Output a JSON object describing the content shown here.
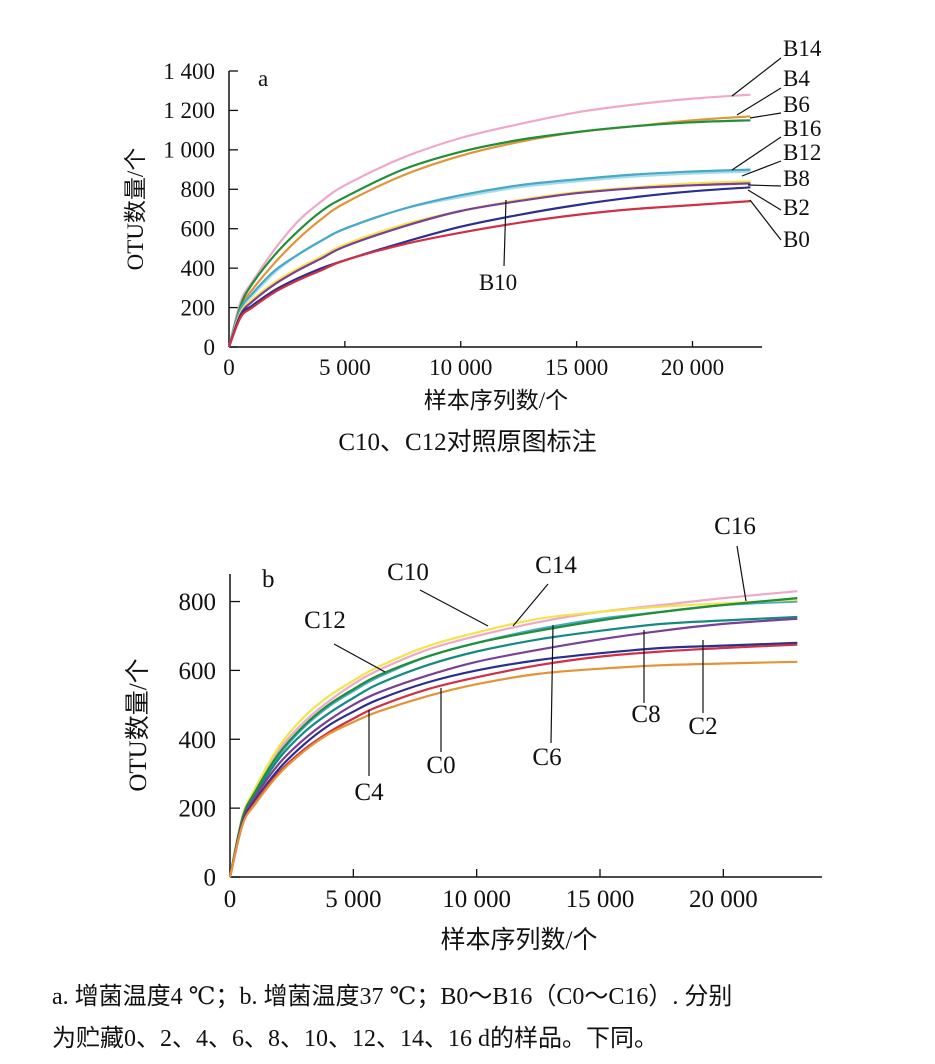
{
  "chart_data": [
    {
      "type": "line",
      "panel_label": "a",
      "xlabel": "样本序列数/个",
      "ylabel": "OTU数量/个",
      "xlim": [
        0,
        23000
      ],
      "ylim": [
        0,
        1400
      ],
      "x_ticks": [
        0,
        5000,
        10000,
        15000,
        20000
      ],
      "x_tick_labels": [
        "0",
        "5 000",
        "10 000",
        "15 000",
        "20 000"
      ],
      "y_ticks": [
        0,
        200,
        400,
        600,
        800,
        1000,
        1200,
        1400
      ],
      "y_tick_labels": [
        "0",
        "200",
        "400",
        "600",
        "800",
        "1 000",
        "1 200",
        "1 400"
      ],
      "grid": false,
      "x": [
        0,
        500,
        1000,
        2000,
        3000,
        4000,
        5000,
        7500,
        10000,
        12500,
        15000,
        17500,
        20000,
        22500
      ],
      "series": [
        {
          "name": "B14",
          "color": "#f0a8c8",
          "values": [
            0,
            230,
            330,
            500,
            640,
            740,
            820,
            960,
            1060,
            1130,
            1190,
            1230,
            1260,
            1280
          ]
        },
        {
          "name": "B4",
          "color": "#e29437",
          "values": [
            0,
            200,
            290,
            430,
            550,
            650,
            730,
            870,
            970,
            1040,
            1090,
            1120,
            1150,
            1170
          ]
        },
        {
          "name": "B6",
          "color": "#1f8f3a",
          "values": [
            0,
            210,
            320,
            470,
            590,
            690,
            760,
            900,
            990,
            1050,
            1090,
            1120,
            1140,
            1150
          ]
        },
        {
          "name": "B16",
          "color": "#a8dce8",
          "values": [
            0,
            190,
            260,
            380,
            470,
            540,
            600,
            700,
            760,
            810,
            840,
            865,
            880,
            890
          ]
        },
        {
          "name": "B12",
          "color": "#47a9c9",
          "values": [
            0,
            190,
            270,
            390,
            470,
            540,
            600,
            700,
            770,
            820,
            850,
            875,
            890,
            900
          ]
        },
        {
          "name": "B8",
          "color": "#f2e44a",
          "values": [
            0,
            175,
            240,
            330,
            400,
            460,
            520,
            620,
            690,
            745,
            785,
            810,
            830,
            840
          ]
        },
        {
          "name": "B10",
          "color": "#7a3f96",
          "values": [
            0,
            165,
            230,
            320,
            390,
            450,
            510,
            610,
            690,
            740,
            780,
            805,
            820,
            830
          ]
        },
        {
          "name": "B2",
          "color": "#2a2f8f",
          "values": [
            0,
            160,
            210,
            290,
            350,
            400,
            440,
            530,
            610,
            670,
            720,
            760,
            790,
            810
          ]
        },
        {
          "name": "B0",
          "color": "#d03045",
          "values": [
            0,
            150,
            200,
            280,
            340,
            390,
            440,
            520,
            580,
            630,
            670,
            700,
            720,
            740
          ]
        }
      ],
      "labels": [
        "B14",
        "B4",
        "B6",
        "B16",
        "B12",
        "B8",
        "B2",
        "B0",
        "B10"
      ]
    },
    {
      "type": "line",
      "panel_label": "b",
      "xlabel": "样本序列数/个",
      "ylabel": "OTU数量/个",
      "xlim": [
        0,
        24000
      ],
      "ylim": [
        0,
        880
      ],
      "x_ticks": [
        0,
        5000,
        10000,
        15000,
        20000
      ],
      "x_tick_labels": [
        "0",
        "5 000",
        "10 000",
        "15 000",
        "20 000"
      ],
      "y_ticks": [
        0,
        200,
        400,
        600,
        800
      ],
      "y_tick_labels": [
        "0",
        "200",
        "400",
        "600",
        "800"
      ],
      "grid": false,
      "x": [
        0,
        500,
        1000,
        2000,
        3000,
        4000,
        5000,
        6000,
        8000,
        10000,
        12500,
        15000,
        17500,
        20000,
        23000
      ],
      "series": [
        {
          "name": "C16",
          "color": "#f0a8c8",
          "values": [
            0,
            170,
            250,
            370,
            450,
            510,
            560,
            600,
            660,
            700,
            740,
            770,
            790,
            810,
            830
          ]
        },
        {
          "name": "C14",
          "color": "#47a9c9",
          "values": [
            0,
            165,
            240,
            355,
            435,
            495,
            540,
            580,
            640,
            680,
            720,
            750,
            770,
            790,
            800
          ]
        },
        {
          "name": "C10",
          "color": "#f2e44a",
          "values": [
            0,
            175,
            255,
            380,
            465,
            525,
            570,
            610,
            670,
            710,
            750,
            770,
            785,
            795,
            805
          ]
        },
        {
          "name": "C12",
          "color": "#1f8f3a",
          "values": [
            0,
            170,
            245,
            360,
            440,
            500,
            545,
            585,
            640,
            680,
            715,
            745,
            770,
            790,
            810
          ]
        },
        {
          "name": "C6",
          "color": "#148a80",
          "values": [
            0,
            160,
            235,
            345,
            420,
            475,
            520,
            560,
            615,
            655,
            690,
            715,
            735,
            745,
            755
          ]
        },
        {
          "name": "C8",
          "color": "#7a3f96",
          "values": [
            0,
            160,
            230,
            330,
            400,
            455,
            500,
            535,
            585,
            625,
            660,
            690,
            715,
            735,
            750
          ]
        },
        {
          "name": "C0",
          "color": "#2a2f8f",
          "values": [
            0,
            155,
            220,
            315,
            385,
            440,
            480,
            515,
            565,
            600,
            630,
            650,
            665,
            672,
            680
          ]
        },
        {
          "name": "C2",
          "color": "#d03045",
          "values": [
            0,
            150,
            215,
            305,
            370,
            420,
            460,
            495,
            545,
            580,
            615,
            640,
            655,
            665,
            675
          ]
        },
        {
          "name": "C4",
          "color": "#e29437",
          "values": [
            0,
            150,
            210,
            300,
            365,
            415,
            450,
            480,
            525,
            560,
            590,
            605,
            615,
            620,
            625
          ]
        }
      ],
      "labels": [
        "C16",
        "C10",
        "C14",
        "C12",
        "C8",
        "C2",
        "C0",
        "C6",
        "C4"
      ]
    }
  ],
  "captions": {
    "panel_a_note": "C10、C12对照原图标注",
    "footnote_line1": "a. 增菌温度4 ℃；b. 增菌温度37 ℃；B0～B16（C0～C16）. 分别",
    "footnote_line2": "为贮藏0、2、4、6、8、10、12、14、16 d的样品。下同。"
  }
}
